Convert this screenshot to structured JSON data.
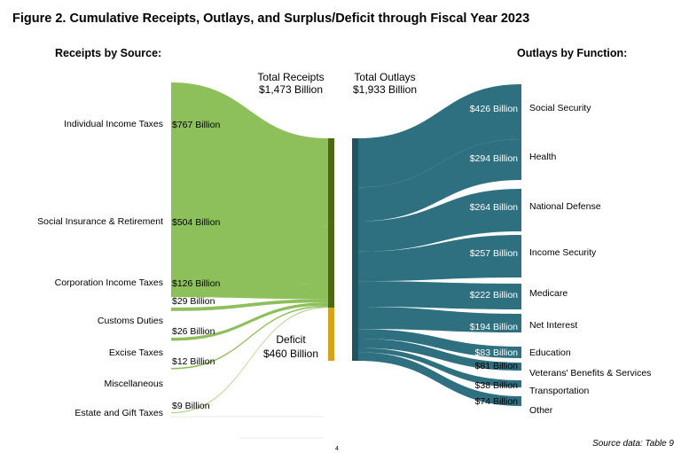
{
  "figure_title": "Figure 2. Cumulative Receipts, Outlays, and Surplus/Deficit through Fiscal Year 2023",
  "receipts_header": "Receipts by Source:",
  "outlays_header": "Outlays by Function:",
  "total_receipts": {
    "line1": "Total Receipts",
    "line2": "$1,473 Billion"
  },
  "total_outlays": {
    "line1": "Total Outlays",
    "line2": "$1,933 Billion"
  },
  "deficit": {
    "line1": "Deficit",
    "line2": "$460 Billion"
  },
  "source_note": "Source data: Table 9",
  "page_number": "4",
  "colors": {
    "receipts": "#8dbf5a",
    "receipts_bar": "#4a6a14",
    "deficit": "#d7a21a",
    "outlays": "#2e7080",
    "outlays_bar": "#1f5563"
  },
  "chart_data": {
    "type": "sankey",
    "units": "Billion",
    "receipts": [
      {
        "label": "Individual Income Taxes",
        "value": 767,
        "value_label": "$767 Billion"
      },
      {
        "label": "Social Insurance & Retirement",
        "value": 504,
        "value_label": "$504 Billion"
      },
      {
        "label": "Corporation Income Taxes",
        "value": 126,
        "value_label": "$126 Billion"
      },
      {
        "label": "Customs Duties",
        "value": 29,
        "value_label": "$29 Billion"
      },
      {
        "label": "Excise Taxes",
        "value": 26,
        "value_label": "$26 Billion"
      },
      {
        "label": "Miscellaneous",
        "value": 12,
        "value_label": "$12 Billion"
      },
      {
        "label": "Estate and Gift Taxes",
        "value": 9,
        "value_label": "$9 Billion"
      }
    ],
    "outlays": [
      {
        "label": "Social Security",
        "value": 426,
        "value_label": "$426 Billion"
      },
      {
        "label": "Health",
        "value": 294,
        "value_label": "$294 Billion"
      },
      {
        "label": "National Defense",
        "value": 264,
        "value_label": "$264 Billion"
      },
      {
        "label": "Income Security",
        "value": 257,
        "value_label": "$257 Billion"
      },
      {
        "label": "Medicare",
        "value": 222,
        "value_label": "$222 Billion"
      },
      {
        "label": "Net Interest",
        "value": 194,
        "value_label": "$194 Billion"
      },
      {
        "label": "Education",
        "value": 83,
        "value_label": "$83 Billion"
      },
      {
        "label": "Veterans' Benefits & Services",
        "value": 81,
        "value_label": "$81 Billion"
      },
      {
        "label": "Transportation",
        "value": 38,
        "value_label": "$38 Billion"
      },
      {
        "label": "Other",
        "value": 74,
        "value_label": "$74 Billion"
      }
    ],
    "total_receipts": 1473,
    "total_outlays": 1933,
    "deficit": 460
  }
}
